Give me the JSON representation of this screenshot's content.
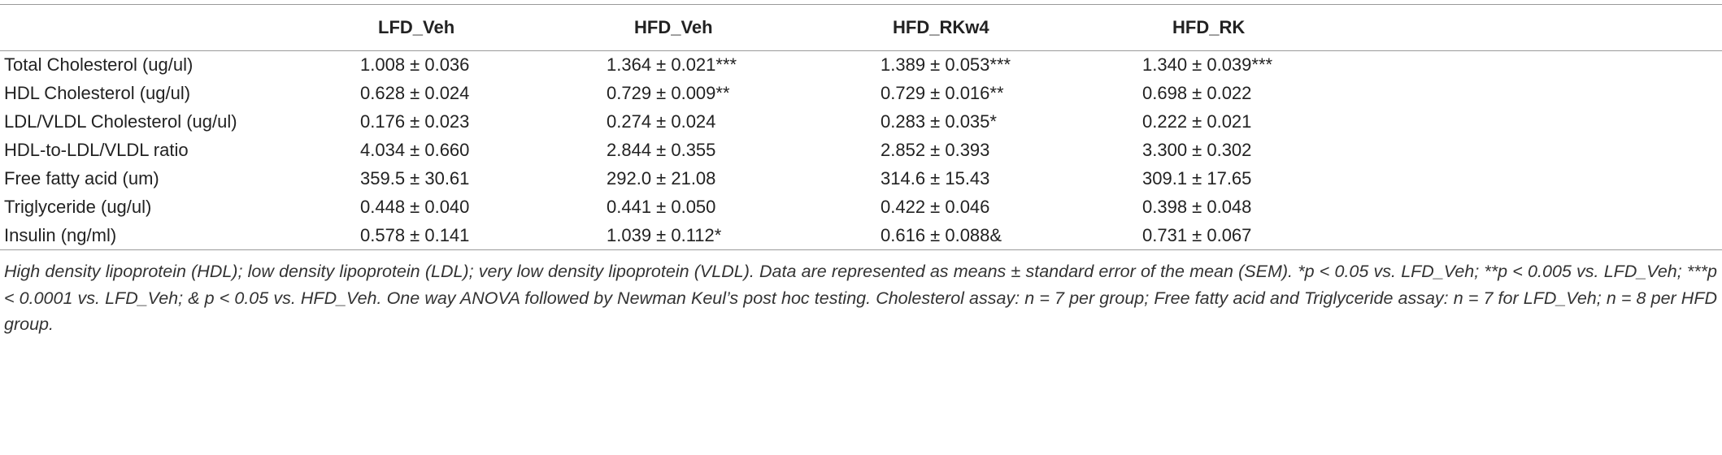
{
  "table": {
    "header": [
      "LFD_Veh",
      "HFD_Veh",
      "HFD_RKw4",
      "HFD_RK"
    ],
    "rows": [
      [
        "Total Cholesterol (ug/ul)",
        "1.008 ± 0.036",
        "1.364 ± 0.021***",
        "1.389 ± 0.053***",
        "1.340 ± 0.039***"
      ],
      [
        "HDL Cholesterol (ug/ul)",
        "0.628 ± 0.024",
        "0.729 ± 0.009**",
        "0.729 ± 0.016**",
        "0.698 ± 0.022"
      ],
      [
        "LDL/VLDL Cholesterol (ug/ul)",
        "0.176 ± 0.023",
        "0.274 ± 0.024",
        "0.283 ± 0.035*",
        "0.222 ± 0.021"
      ],
      [
        "HDL-to-LDL/VLDL ratio",
        "4.034 ± 0.660",
        "2.844 ± 0.355",
        "2.852 ± 0.393",
        "3.300 ± 0.302"
      ],
      [
        "Free fatty acid (um)",
        "359.5 ± 30.61",
        "292.0 ± 21.08",
        "314.6 ± 15.43",
        "309.1 ± 17.65"
      ],
      [
        "Triglyceride (ug/ul)",
        "0.448 ± 0.040",
        "0.441 ± 0.050",
        "0.422 ± 0.046",
        "0.398 ± 0.048"
      ],
      [
        "Insulin (ng/ml)",
        "0.578 ± 0.141",
        "1.039 ± 0.112*",
        "0.616 ± 0.088&",
        "0.731 ± 0.067"
      ]
    ]
  },
  "footnote": "High density lipoprotein (HDL); low density lipoprotein (LDL); very low density lipoprotein (VLDL). Data are represented as means ± standard error of the mean (SEM). *p < 0.05 vs. LFD_Veh; **p < 0.005 vs. LFD_Veh; ***p < 0.0001 vs. LFD_Veh; & p < 0.05 vs. HFD_Veh. One way ANOVA followed by Newman Keul’s post hoc testing. Cholesterol assay: n = 7 per group; Free fatty acid and Triglyceride assay: n = 7 for LFD_Veh; n = 8 per HFD group."
}
